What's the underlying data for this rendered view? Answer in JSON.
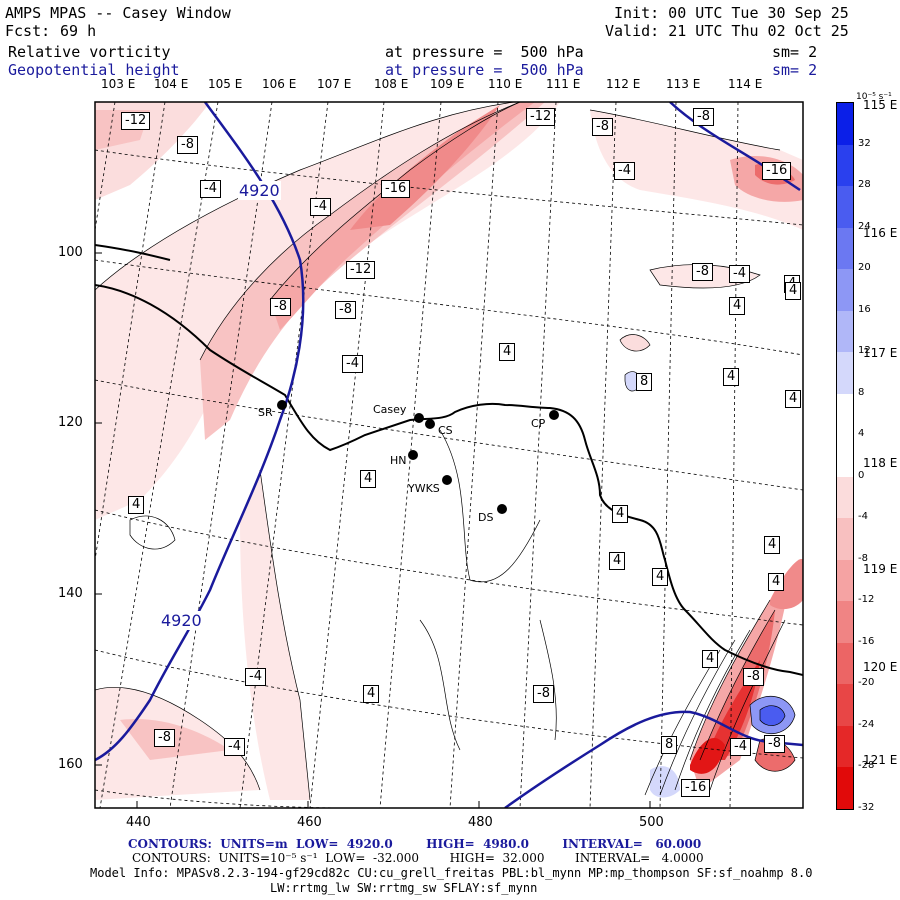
{
  "header": {
    "title": "AMPS MPAS -- Casey Window",
    "forecast_label": "Fcst:",
    "forecast_hours": "69 h",
    "init": "Init: 00 UTC Tue 30 Sep 25",
    "valid": "Valid: 21 UTC Thu 02 Oct 25",
    "field1": {
      "name": "Relative vorticity",
      "level": "at pressure =  500 hPa",
      "sm": "sm= 2"
    },
    "field2": {
      "name": "Geopotential height",
      "level": "at pressure =  500 hPa",
      "sm": "sm= 2"
    }
  },
  "longitude_labels": [
    "103 E",
    "104 E",
    "105 E",
    "106 E",
    "107 E",
    "108 E",
    "109 E",
    "110 E",
    "111 E",
    "112 E",
    "113 E",
    "114 E"
  ],
  "latitude_labels": [
    "115 E",
    "116 E",
    "117 E",
    "118 E",
    "119 E",
    "120 E",
    "121 E"
  ],
  "y_axis_ticks": [
    "100",
    "120",
    "140",
    "160"
  ],
  "x_axis_ticks": [
    "440",
    "460",
    "480",
    "500"
  ],
  "colorbar": {
    "unit": "10⁻⁵ s⁻¹",
    "ticks": [
      "32",
      "28",
      "24",
      "20",
      "16",
      "12",
      "8",
      "4",
      "0",
      "-4",
      "-8",
      "-12",
      "-16",
      "-20",
      "-24",
      "-28",
      "-32"
    ],
    "colors": [
      "#0b1fe8",
      "#2a40ee",
      "#4a5cf0",
      "#6b78f2",
      "#8d97f5",
      "#b0b7f8",
      "#d4d8fb",
      "#ffffff",
      "#ffffff",
      "#fbdcdc",
      "#f8c0c0",
      "#f5a3a3",
      "#f08484",
      "#ec6565",
      "#e84646",
      "#e52828",
      "#e10a0a"
    ]
  },
  "stations": [
    {
      "name": "Casey"
    },
    {
      "name": "CS"
    },
    {
      "name": "HN"
    },
    {
      "name": "YWKS"
    },
    {
      "name": "DS"
    },
    {
      "name": "CP"
    },
    {
      "name": "SR"
    }
  ],
  "height_contour_labels": [
    "4920",
    "4920"
  ],
  "vorticity_labels": [
    "-12",
    "-8",
    "-4",
    "-4",
    "-16",
    "-12",
    "-8",
    "-8",
    "-4",
    "-12",
    "-8",
    "-4",
    "-8",
    "-16",
    "-8",
    "-4",
    "4",
    "4",
    "4",
    "8",
    "4",
    "4",
    "4",
    "4",
    "4",
    "4",
    "4",
    "4",
    "4",
    "-8",
    "4",
    "-8",
    "-4",
    "-8",
    "-4",
    "-16",
    "-8",
    "8",
    "-4",
    "4",
    "4",
    "4"
  ],
  "footer": {
    "line1": "CONTOURS:  UNITS=m  LOW=  4920.0        HIGH=  4980.0        INTERVAL=   60.000",
    "line2": "CONTOURS:  UNITS=10⁻⁵ s⁻¹  LOW=  -32.000        HIGH=  32.000        INTERVAL=   4.0000",
    "line3": "Model Info: MPASv8.2.3-194-gf29cd82c CU:cu_grell_freitas PBL:bl_mynn MP:mp_thompson SF:sf_noahmp 8.0",
    "line4": "LW:rrtmg_lw SW:rrtmg_sw SFLAY:sf_mynn"
  }
}
